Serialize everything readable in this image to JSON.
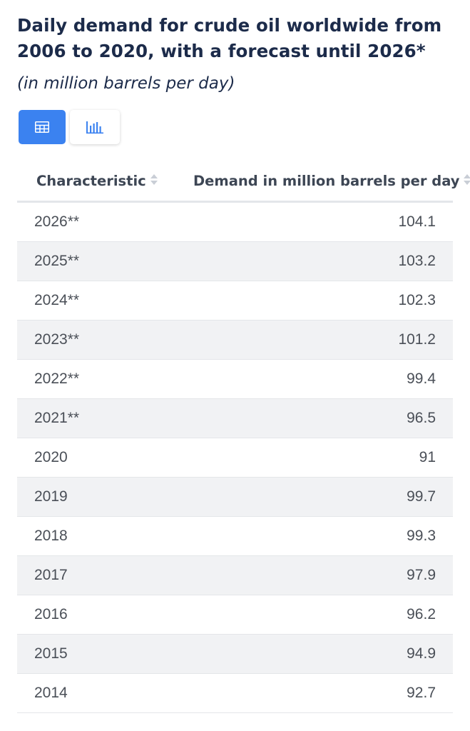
{
  "title": "Daily demand for crude oil worldwide from 2006 to 2020, with a forecast until 2026*",
  "subtitle": "(in million barrels per day)",
  "view_toggle": {
    "active": "table",
    "accent_color": "#3b82f0",
    "icons": [
      "table-icon",
      "bar-chart-icon"
    ]
  },
  "chart_data": {
    "type": "table",
    "columns": [
      "Characteristic",
      "Demand in million barrels per day"
    ],
    "rows": [
      {
        "label": "2026**",
        "value": "104.1"
      },
      {
        "label": "2025**",
        "value": "103.2"
      },
      {
        "label": "2024**",
        "value": "102.3"
      },
      {
        "label": "2023**",
        "value": "101.2"
      },
      {
        "label": "2022**",
        "value": "99.4"
      },
      {
        "label": "2021**",
        "value": "96.5"
      },
      {
        "label": "2020",
        "value": "91"
      },
      {
        "label": "2019",
        "value": "99.7"
      },
      {
        "label": "2018",
        "value": "99.3"
      },
      {
        "label": "2017",
        "value": "97.9"
      },
      {
        "label": "2016",
        "value": "96.2"
      },
      {
        "label": "2015",
        "value": "94.9"
      },
      {
        "label": "2014",
        "value": "92.7"
      }
    ]
  }
}
